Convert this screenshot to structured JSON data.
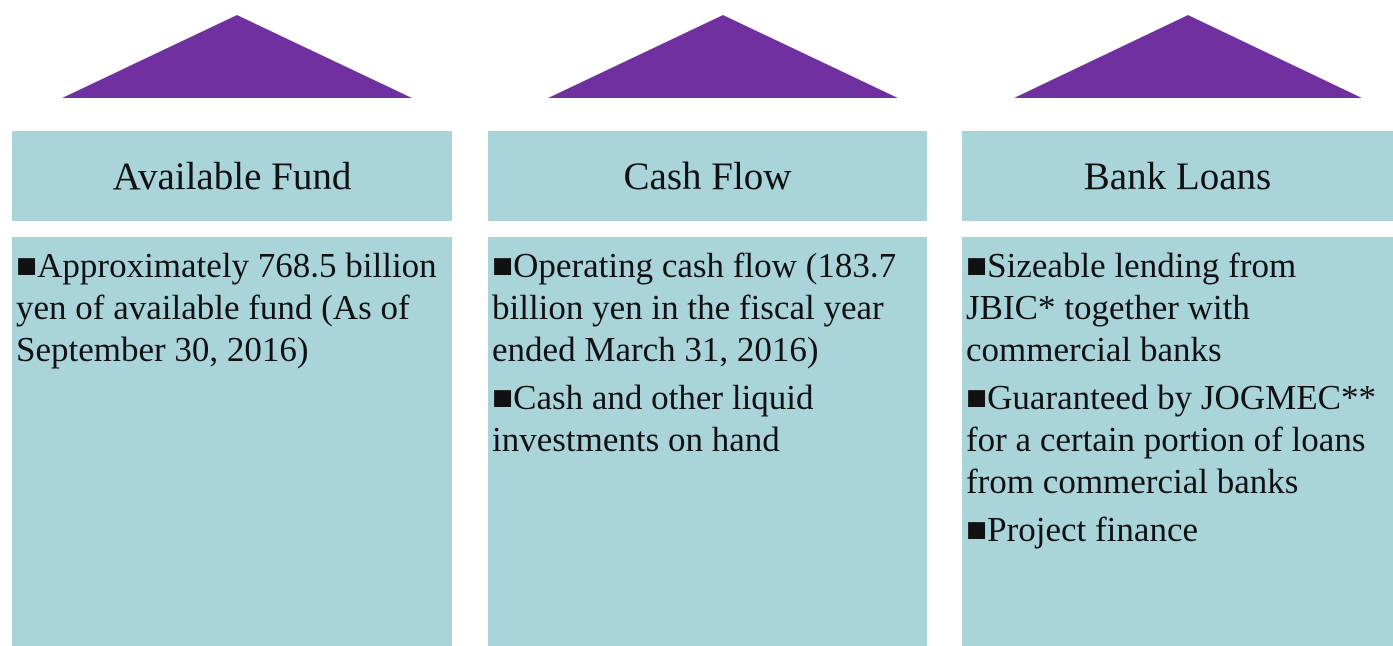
{
  "columns": [
    {
      "header": "Available Fund",
      "bullets": [
        "■Approximately 768.5 billion yen of available fund (As of September 30, 2016)"
      ]
    },
    {
      "header": "Cash Flow",
      "bullets": [
        "■Operating cash flow (183.7 billion yen in the fiscal year ended March 31, 2016)",
        "■Cash and other liquid investments on hand"
      ]
    },
    {
      "header": "Bank Loans",
      "bullets": [
        "■Sizeable lending from JBIC* together with commercial banks",
        "■Guaranteed by JOGMEC** for a certain portion of loans from commercial banks",
        "■Project finance"
      ]
    }
  ]
}
